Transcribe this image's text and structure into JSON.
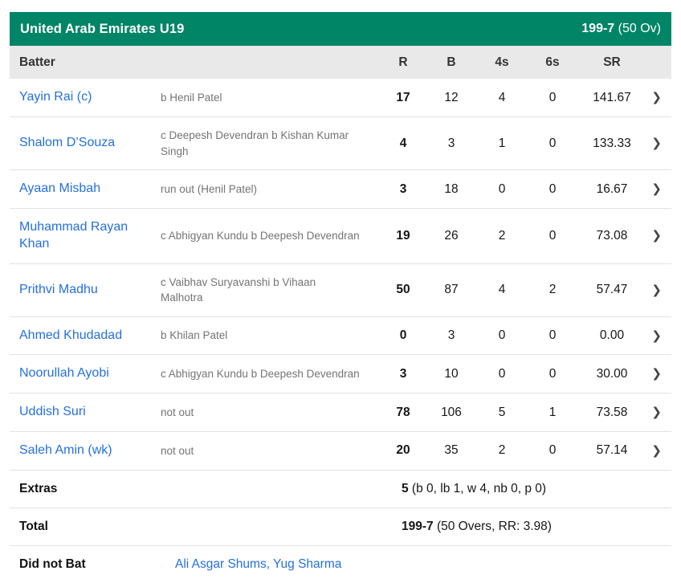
{
  "team_header": {
    "team": "United Arab Emirates U19",
    "score": "199-7",
    "overs": " (50 Ov)"
  },
  "columns": {
    "batter": "Batter",
    "runs": "R",
    "balls": "B",
    "fours": "4s",
    "sixes": "6s",
    "strike_rate": "SR"
  },
  "batters": [
    {
      "name": "Yayin Rai (c)",
      "dismissal": "b Henil Patel",
      "runs": "17",
      "balls": "12",
      "fours": "4",
      "sixes": "0",
      "sr": "141.67"
    },
    {
      "name": "Shalom D’Souza",
      "dismissal": "c Deepesh Devendran b Kishan Kumar Singh",
      "runs": "4",
      "balls": "3",
      "fours": "1",
      "sixes": "0",
      "sr": "133.33"
    },
    {
      "name": "Ayaan Misbah",
      "dismissal": "run out (Henil Patel)",
      "runs": "3",
      "balls": "18",
      "fours": "0",
      "sixes": "0",
      "sr": "16.67"
    },
    {
      "name": "Muhammad Rayan Khan",
      "dismissal": "c Abhigyan Kundu b Deepesh Devendran",
      "runs": "19",
      "balls": "26",
      "fours": "2",
      "sixes": "0",
      "sr": "73.08"
    },
    {
      "name": "Prithvi Madhu",
      "dismissal": "c Vaibhav Suryavanshi b Vihaan Malhotra",
      "runs": "50",
      "balls": "87",
      "fours": "4",
      "sixes": "2",
      "sr": "57.47"
    },
    {
      "name": "Ahmed Khudadad",
      "dismissal": "b Khilan Patel",
      "runs": "0",
      "balls": "3",
      "fours": "0",
      "sixes": "0",
      "sr": "0.00"
    },
    {
      "name": "Noorullah Ayobi",
      "dismissal": "c Abhigyan Kundu b Deepesh Devendran",
      "runs": "3",
      "balls": "10",
      "fours": "0",
      "sixes": "0",
      "sr": "30.00"
    },
    {
      "name": "Uddish Suri",
      "dismissal": "not out",
      "runs": "78",
      "balls": "106",
      "fours": "5",
      "sixes": "1",
      "sr": "73.58"
    },
    {
      "name": "Saleh Amin (wk)",
      "dismissal": "not out",
      "runs": "20",
      "balls": "35",
      "fours": "2",
      "sixes": "0",
      "sr": "57.14"
    }
  ],
  "extras": {
    "label": "Extras",
    "value": "5",
    "detail": " (b 0, lb 1, w 4, nb 0, p 0)"
  },
  "total": {
    "label": "Total",
    "value": "199-7",
    "detail": " (50 Overs, RR: 3.98)"
  },
  "did_not_bat": {
    "label": "Did not Bat",
    "players": "Ali Asgar Shums, Yug Sharma"
  },
  "icons": {
    "chevron_right": "❯"
  },
  "colors": {
    "header_green": "#008566",
    "link_blue": "#2470de"
  }
}
